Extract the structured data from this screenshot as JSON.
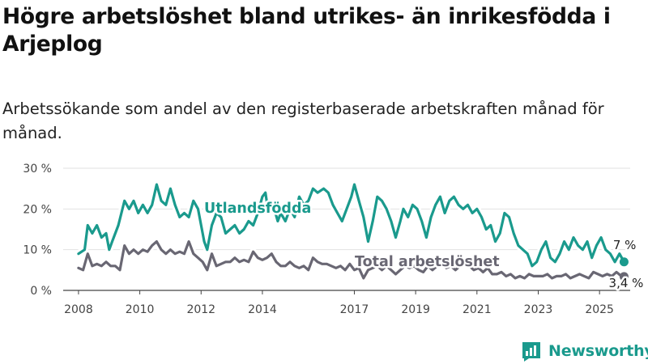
{
  "title": "Högre arbetslöshet bland utrikes- än inrikesfödda i Arjeplog",
  "subtitle": "Arbetssökande som andel av den registerbaserade arbetskraften månad för månad.",
  "brand": {
    "name": "Newsworthy",
    "color": "#1a9a8d"
  },
  "chart_data": {
    "type": "line",
    "ylim": [
      0,
      30
    ],
    "xlim": [
      2007.5,
      2026.0
    ],
    "y_ticks": [
      {
        "value": 0,
        "label": "0 %"
      },
      {
        "value": 10,
        "label": "10 %"
      },
      {
        "value": 20,
        "label": "20 %"
      },
      {
        "value": 30,
        "label": "30 %"
      }
    ],
    "x_ticks": [
      {
        "value": 2008,
        "label": "2008"
      },
      {
        "value": 2010,
        "label": "2010"
      },
      {
        "value": 2012,
        "label": "2012"
      },
      {
        "value": 2014,
        "label": "2014"
      },
      {
        "value": 2017,
        "label": "2017"
      },
      {
        "value": 2019,
        "label": "2019"
      },
      {
        "value": 2021,
        "label": "2021"
      },
      {
        "value": 2023,
        "label": "2023"
      },
      {
        "value": 2025,
        "label": "2025"
      }
    ],
    "grid": true,
    "series": [
      {
        "name": "Utlandsfödda",
        "color": "#1a9a8d",
        "last_label": "7 %",
        "points": [
          [
            2008.0,
            9
          ],
          [
            2008.2,
            10
          ],
          [
            2008.3,
            16
          ],
          [
            2008.45,
            14
          ],
          [
            2008.6,
            16
          ],
          [
            2008.75,
            13
          ],
          [
            2008.9,
            14
          ],
          [
            2009.0,
            10
          ],
          [
            2009.1,
            12
          ],
          [
            2009.3,
            16
          ],
          [
            2009.5,
            22
          ],
          [
            2009.65,
            20
          ],
          [
            2009.8,
            22
          ],
          [
            2009.95,
            19
          ],
          [
            2010.1,
            21
          ],
          [
            2010.25,
            19
          ],
          [
            2010.4,
            21
          ],
          [
            2010.55,
            26
          ],
          [
            2010.7,
            22
          ],
          [
            2010.85,
            21
          ],
          [
            2011.0,
            25
          ],
          [
            2011.15,
            21
          ],
          [
            2011.3,
            18
          ],
          [
            2011.45,
            19
          ],
          [
            2011.6,
            18
          ],
          [
            2011.75,
            22
          ],
          [
            2011.9,
            20
          ],
          [
            2012.0,
            16
          ],
          [
            2012.1,
            12
          ],
          [
            2012.2,
            10
          ],
          [
            2012.35,
            16
          ],
          [
            2012.5,
            19
          ],
          [
            2012.65,
            18
          ],
          [
            2012.8,
            14
          ],
          [
            2012.95,
            15
          ],
          [
            2013.1,
            16
          ],
          [
            2013.25,
            14
          ],
          [
            2013.4,
            15
          ],
          [
            2013.55,
            17
          ],
          [
            2013.7,
            16
          ],
          [
            2013.85,
            19
          ],
          [
            2014.0,
            23
          ],
          [
            2014.1,
            24
          ],
          [
            2014.2,
            19
          ],
          [
            2014.35,
            21
          ],
          [
            2014.5,
            17
          ],
          [
            2014.6,
            19
          ],
          [
            2014.75,
            17
          ],
          [
            2014.9,
            20
          ],
          [
            2015.05,
            18
          ],
          [
            2015.2,
            23
          ],
          [
            2015.35,
            21
          ],
          [
            2015.5,
            22
          ],
          [
            2015.65,
            25
          ],
          [
            2015.8,
            24
          ],
          [
            2016.0,
            25
          ],
          [
            2016.15,
            24
          ],
          [
            2016.3,
            21
          ],
          [
            2016.45,
            19
          ],
          [
            2016.6,
            17
          ],
          [
            2016.75,
            20
          ],
          [
            2016.9,
            23
          ],
          [
            2017.0,
            26
          ],
          [
            2017.15,
            22
          ],
          [
            2017.3,
            18
          ],
          [
            2017.45,
            12
          ],
          [
            2017.6,
            17
          ],
          [
            2017.75,
            23
          ],
          [
            2017.9,
            22
          ],
          [
            2018.05,
            20
          ],
          [
            2018.2,
            17
          ],
          [
            2018.35,
            13
          ],
          [
            2018.5,
            17
          ],
          [
            2018.6,
            20
          ],
          [
            2018.75,
            18
          ],
          [
            2018.9,
            21
          ],
          [
            2019.05,
            20
          ],
          [
            2019.2,
            17
          ],
          [
            2019.35,
            13
          ],
          [
            2019.5,
            18
          ],
          [
            2019.65,
            21
          ],
          [
            2019.8,
            23
          ],
          [
            2019.95,
            19
          ],
          [
            2020.1,
            22
          ],
          [
            2020.25,
            23
          ],
          [
            2020.4,
            21
          ],
          [
            2020.55,
            20
          ],
          [
            2020.7,
            21
          ],
          [
            2020.85,
            19
          ],
          [
            2021.0,
            20
          ],
          [
            2021.15,
            18
          ],
          [
            2021.3,
            15
          ],
          [
            2021.45,
            16
          ],
          [
            2021.6,
            12
          ],
          [
            2021.75,
            14
          ],
          [
            2021.9,
            19
          ],
          [
            2022.05,
            18
          ],
          [
            2022.2,
            14
          ],
          [
            2022.35,
            11
          ],
          [
            2022.5,
            10
          ],
          [
            2022.65,
            9
          ],
          [
            2022.8,
            6
          ],
          [
            2022.95,
            7
          ],
          [
            2023.1,
            10
          ],
          [
            2023.25,
            12
          ],
          [
            2023.4,
            8
          ],
          [
            2023.55,
            7
          ],
          [
            2023.7,
            9
          ],
          [
            2023.85,
            12
          ],
          [
            2024.0,
            10
          ],
          [
            2024.15,
            13
          ],
          [
            2024.3,
            11
          ],
          [
            2024.45,
            10
          ],
          [
            2024.6,
            12
          ],
          [
            2024.75,
            8
          ],
          [
            2024.9,
            11
          ],
          [
            2025.05,
            13
          ],
          [
            2025.2,
            10
          ],
          [
            2025.35,
            9
          ],
          [
            2025.5,
            7
          ],
          [
            2025.65,
            9
          ],
          [
            2025.8,
            7
          ]
        ]
      },
      {
        "name": "Total arbetslöshet",
        "color": "#696773",
        "last_label": "3,4 %",
        "points": [
          [
            2008.0,
            5.5
          ],
          [
            2008.15,
            5
          ],
          [
            2008.3,
            9
          ],
          [
            2008.45,
            6
          ],
          [
            2008.6,
            6.5
          ],
          [
            2008.75,
            6
          ],
          [
            2008.9,
            7
          ],
          [
            2009.05,
            6
          ],
          [
            2009.2,
            6
          ],
          [
            2009.35,
            5
          ],
          [
            2009.5,
            11
          ],
          [
            2009.65,
            9
          ],
          [
            2009.8,
            10
          ],
          [
            2009.95,
            9
          ],
          [
            2010.1,
            10
          ],
          [
            2010.25,
            9.5
          ],
          [
            2010.4,
            11
          ],
          [
            2010.55,
            12
          ],
          [
            2010.7,
            10
          ],
          [
            2010.85,
            9
          ],
          [
            2011.0,
            10
          ],
          [
            2011.15,
            9
          ],
          [
            2011.3,
            9.5
          ],
          [
            2011.45,
            9
          ],
          [
            2011.6,
            12
          ],
          [
            2011.75,
            9
          ],
          [
            2011.9,
            8
          ],
          [
            2012.05,
            7
          ],
          [
            2012.2,
            5
          ],
          [
            2012.35,
            9
          ],
          [
            2012.5,
            6
          ],
          [
            2012.65,
            6.5
          ],
          [
            2012.8,
            7
          ],
          [
            2012.95,
            7
          ],
          [
            2013.1,
            8
          ],
          [
            2013.25,
            7
          ],
          [
            2013.4,
            7.5
          ],
          [
            2013.55,
            7
          ],
          [
            2013.7,
            9.5
          ],
          [
            2013.85,
            8
          ],
          [
            2014.0,
            7.5
          ],
          [
            2014.15,
            8
          ],
          [
            2014.3,
            9
          ],
          [
            2014.45,
            7
          ],
          [
            2014.6,
            6
          ],
          [
            2014.75,
            6
          ],
          [
            2014.9,
            7
          ],
          [
            2015.05,
            6
          ],
          [
            2015.2,
            5.5
          ],
          [
            2015.35,
            6
          ],
          [
            2015.5,
            5
          ],
          [
            2015.65,
            8
          ],
          [
            2015.8,
            7
          ],
          [
            2015.95,
            6.5
          ],
          [
            2016.1,
            6.5
          ],
          [
            2016.25,
            6
          ],
          [
            2016.4,
            5.5
          ],
          [
            2016.55,
            6
          ],
          [
            2016.7,
            5
          ],
          [
            2016.85,
            6.5
          ],
          [
            2017.0,
            5
          ],
          [
            2017.15,
            5.5
          ],
          [
            2017.3,
            3
          ],
          [
            2017.45,
            5
          ],
          [
            2017.6,
            5.5
          ],
          [
            2017.75,
            6
          ],
          [
            2017.9,
            5
          ],
          [
            2018.05,
            6
          ],
          [
            2018.2,
            5
          ],
          [
            2018.35,
            4
          ],
          [
            2018.5,
            5
          ],
          [
            2018.65,
            6
          ],
          [
            2018.8,
            5.5
          ],
          [
            2018.95,
            6
          ],
          [
            2019.1,
            5
          ],
          [
            2019.25,
            4.5
          ],
          [
            2019.4,
            6
          ],
          [
            2019.55,
            5
          ],
          [
            2019.7,
            6
          ],
          [
            2019.85,
            6.5
          ],
          [
            2020.0,
            5.5
          ],
          [
            2020.15,
            6
          ],
          [
            2020.3,
            5
          ],
          [
            2020.45,
            6
          ],
          [
            2020.6,
            6.5
          ],
          [
            2020.75,
            6
          ],
          [
            2020.9,
            5
          ],
          [
            2021.05,
            5.5
          ],
          [
            2021.2,
            4.5
          ],
          [
            2021.35,
            5.5
          ],
          [
            2021.5,
            4
          ],
          [
            2021.65,
            4
          ],
          [
            2021.8,
            4.5
          ],
          [
            2021.95,
            3.5
          ],
          [
            2022.1,
            4
          ],
          [
            2022.25,
            3
          ],
          [
            2022.4,
            3.5
          ],
          [
            2022.55,
            3
          ],
          [
            2022.7,
            4
          ],
          [
            2022.85,
            3.5
          ],
          [
            2023.0,
            3.5
          ],
          [
            2023.15,
            3.5
          ],
          [
            2023.3,
            4
          ],
          [
            2023.45,
            3
          ],
          [
            2023.6,
            3.5
          ],
          [
            2023.75,
            3.5
          ],
          [
            2023.9,
            4
          ],
          [
            2024.05,
            3
          ],
          [
            2024.2,
            3.5
          ],
          [
            2024.35,
            4
          ],
          [
            2024.5,
            3.5
          ],
          [
            2024.65,
            3
          ],
          [
            2024.8,
            4.5
          ],
          [
            2024.95,
            4
          ],
          [
            2025.1,
            3.5
          ],
          [
            2025.25,
            4
          ],
          [
            2025.4,
            3.5
          ],
          [
            2025.55,
            4.5
          ],
          [
            2025.7,
            3.6
          ],
          [
            2025.8,
            3.4
          ]
        ]
      }
    ]
  }
}
